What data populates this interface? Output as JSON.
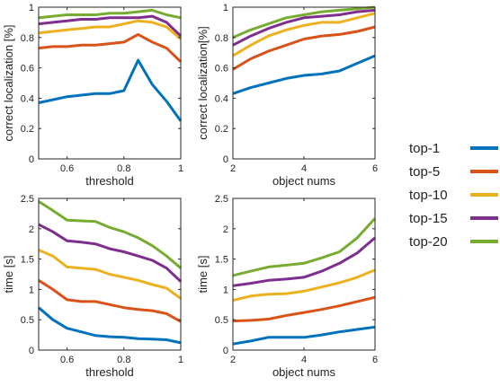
{
  "colors": [
    "#0072BD",
    "#D95319",
    "#EDB120",
    "#7E2F8E",
    "#77AC30"
  ],
  "legend": [
    "top-1",
    "top-5",
    "top-10",
    "top-15",
    "top-20"
  ],
  "chart_data": [
    {
      "type": "line",
      "xlabel": "threshold",
      "ylabel": "correct localization [%]",
      "xlim": [
        0.5,
        1.0
      ],
      "ylim": [
        0,
        1
      ],
      "xticks": [
        0.6,
        0.8,
        1
      ],
      "xticklabels": [
        "0.6",
        "0.8",
        "1"
      ],
      "yticks": [
        0,
        0.2,
        0.4,
        0.6,
        0.8,
        1
      ],
      "yticklabels": [
        "0",
        "0.2",
        "0.4",
        "0.6",
        "0.8",
        "1"
      ],
      "x": [
        0.5,
        0.55,
        0.6,
        0.65,
        0.7,
        0.75,
        0.8,
        0.85,
        0.9,
        0.95,
        1.0
      ],
      "series": [
        {
          "name": "top-1",
          "values": [
            0.37,
            0.39,
            0.41,
            0.42,
            0.43,
            0.43,
            0.45,
            0.65,
            0.49,
            0.38,
            0.25
          ]
        },
        {
          "name": "top-5",
          "values": [
            0.73,
            0.74,
            0.74,
            0.75,
            0.75,
            0.76,
            0.77,
            0.82,
            0.77,
            0.73,
            0.64
          ]
        },
        {
          "name": "top-10",
          "values": [
            0.83,
            0.84,
            0.85,
            0.86,
            0.87,
            0.87,
            0.89,
            0.91,
            0.9,
            0.87,
            0.79
          ]
        },
        {
          "name": "top-15",
          "values": [
            0.89,
            0.9,
            0.91,
            0.92,
            0.92,
            0.93,
            0.93,
            0.93,
            0.94,
            0.9,
            0.81
          ]
        },
        {
          "name": "top-20",
          "values": [
            0.93,
            0.94,
            0.95,
            0.95,
            0.95,
            0.96,
            0.96,
            0.97,
            0.98,
            0.95,
            0.93
          ]
        }
      ]
    },
    {
      "type": "line",
      "xlabel": "object nums",
      "ylabel": "correct localization[%]",
      "xlim": [
        2,
        6
      ],
      "ylim": [
        0,
        1
      ],
      "xticks": [
        2,
        4,
        6
      ],
      "xticklabels": [
        "2",
        "4",
        "6"
      ],
      "yticks": [
        0,
        0.2,
        0.4,
        0.6,
        0.8,
        1
      ],
      "yticklabels": [
        "0",
        "0.2",
        "0.4",
        "0.6",
        "0.8",
        "1"
      ],
      "x": [
        2,
        2.5,
        3,
        3.5,
        4,
        4.5,
        5,
        5.5,
        6
      ],
      "series": [
        {
          "name": "top-1",
          "values": [
            0.43,
            0.47,
            0.5,
            0.53,
            0.55,
            0.56,
            0.58,
            0.63,
            0.68
          ]
        },
        {
          "name": "top-5",
          "values": [
            0.59,
            0.66,
            0.71,
            0.75,
            0.79,
            0.81,
            0.82,
            0.84,
            0.87
          ]
        },
        {
          "name": "top-10",
          "values": [
            0.68,
            0.75,
            0.81,
            0.85,
            0.88,
            0.9,
            0.9,
            0.93,
            0.96
          ]
        },
        {
          "name": "top-15",
          "values": [
            0.75,
            0.81,
            0.86,
            0.9,
            0.93,
            0.94,
            0.95,
            0.97,
            0.98
          ]
        },
        {
          "name": "top-20",
          "values": [
            0.8,
            0.85,
            0.89,
            0.93,
            0.95,
            0.97,
            0.98,
            0.99,
            1.0
          ]
        }
      ]
    },
    {
      "type": "line",
      "xlabel": "threshold",
      "ylabel": "time [s]",
      "xlim": [
        0.5,
        1.0
      ],
      "ylim": [
        0,
        2.5
      ],
      "xticks": [
        0.6,
        0.8,
        1
      ],
      "xticklabels": [
        "0.6",
        "0.8",
        "1"
      ],
      "yticks": [
        0,
        0.5,
        1,
        1.5,
        2,
        2.5
      ],
      "yticklabels": [
        "0",
        "0.5",
        "1",
        "1.5",
        "2",
        "2.5"
      ],
      "x": [
        0.5,
        0.55,
        0.6,
        0.65,
        0.7,
        0.75,
        0.8,
        0.85,
        0.9,
        0.95,
        1.0
      ],
      "series": [
        {
          "name": "top-1",
          "values": [
            0.7,
            0.5,
            0.36,
            0.3,
            0.24,
            0.22,
            0.21,
            0.19,
            0.18,
            0.17,
            0.12
          ]
        },
        {
          "name": "top-5",
          "values": [
            1.15,
            1.0,
            0.83,
            0.8,
            0.8,
            0.75,
            0.7,
            0.67,
            0.65,
            0.6,
            0.47
          ]
        },
        {
          "name": "top-10",
          "values": [
            1.65,
            1.55,
            1.37,
            1.35,
            1.33,
            1.25,
            1.2,
            1.15,
            1.08,
            1.02,
            0.85
          ]
        },
        {
          "name": "top-15",
          "values": [
            2.07,
            1.95,
            1.8,
            1.78,
            1.75,
            1.67,
            1.62,
            1.55,
            1.48,
            1.35,
            1.13
          ]
        },
        {
          "name": "top-20",
          "values": [
            2.45,
            2.3,
            2.14,
            2.13,
            2.12,
            2.02,
            1.95,
            1.85,
            1.72,
            1.55,
            1.35
          ]
        }
      ]
    },
    {
      "type": "line",
      "xlabel": "object nums",
      "ylabel": "time [s]",
      "xlim": [
        2,
        6
      ],
      "ylim": [
        0,
        2.5
      ],
      "xticks": [
        2,
        4,
        6
      ],
      "xticklabels": [
        "2",
        "4",
        "6"
      ],
      "yticks": [
        0,
        0.5,
        1,
        1.5,
        2,
        2.5
      ],
      "yticklabels": [
        "0",
        "0.5",
        "1",
        "1.5",
        "2",
        "2.5"
      ],
      "x": [
        2,
        2.5,
        3,
        3.5,
        4,
        4.5,
        5,
        5.5,
        6
      ],
      "series": [
        {
          "name": "top-1",
          "values": [
            0.1,
            0.15,
            0.21,
            0.21,
            0.21,
            0.25,
            0.3,
            0.34,
            0.38
          ]
        },
        {
          "name": "top-5",
          "values": [
            0.48,
            0.49,
            0.51,
            0.57,
            0.62,
            0.67,
            0.73,
            0.8,
            0.87
          ]
        },
        {
          "name": "top-10",
          "values": [
            0.82,
            0.89,
            0.92,
            0.93,
            0.97,
            1.04,
            1.11,
            1.2,
            1.32
          ]
        },
        {
          "name": "top-15",
          "values": [
            1.06,
            1.1,
            1.15,
            1.17,
            1.2,
            1.3,
            1.43,
            1.6,
            1.85
          ]
        },
        {
          "name": "top-20",
          "values": [
            1.23,
            1.3,
            1.37,
            1.4,
            1.43,
            1.52,
            1.62,
            1.85,
            2.17
          ]
        }
      ]
    }
  ]
}
